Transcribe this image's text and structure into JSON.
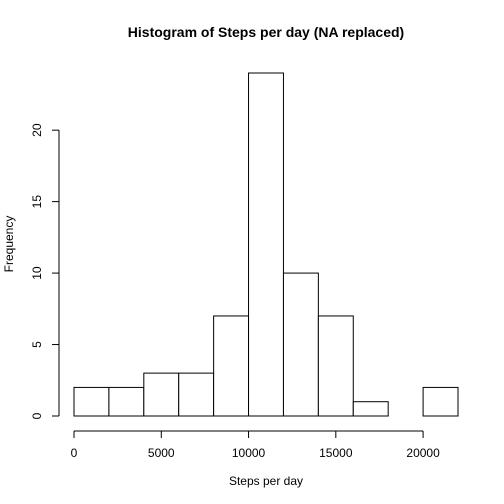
{
  "chart_data": {
    "type": "bar",
    "title": "Histogram of Steps per day (NA replaced)",
    "xlabel": "Steps per day",
    "ylabel": "Frequency",
    "bins": [
      {
        "from": 0,
        "to": 2000,
        "count": 2
      },
      {
        "from": 2000,
        "to": 4000,
        "count": 2
      },
      {
        "from": 4000,
        "to": 6000,
        "count": 3
      },
      {
        "from": 6000,
        "to": 8000,
        "count": 3
      },
      {
        "from": 8000,
        "to": 10000,
        "count": 7
      },
      {
        "from": 10000,
        "to": 12000,
        "count": 24
      },
      {
        "from": 12000,
        "to": 14000,
        "count": 10
      },
      {
        "from": 14000,
        "to": 16000,
        "count": 7
      },
      {
        "from": 16000,
        "to": 18000,
        "count": 1
      },
      {
        "from": 18000,
        "to": 20000,
        "count": 0
      },
      {
        "from": 20000,
        "to": 22000,
        "count": 2
      }
    ],
    "xlim": [
      0,
      22000
    ],
    "ylim": [
      0,
      24
    ],
    "x_ticks": [
      0,
      5000,
      10000,
      15000,
      20000
    ],
    "y_ticks": [
      0,
      5,
      10,
      15,
      20
    ],
    "grid": false,
    "legend": "none",
    "colors": {
      "bar_fill": "#ffffff",
      "bar_stroke": "#000000"
    }
  }
}
